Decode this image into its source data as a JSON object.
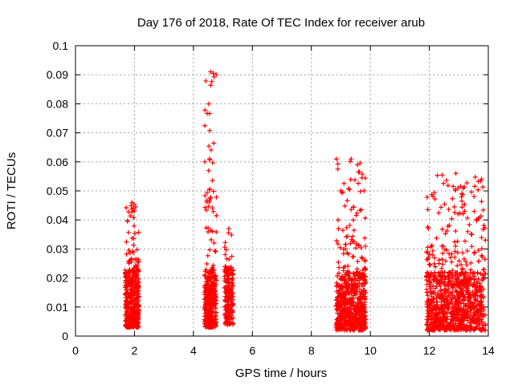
{
  "chart_data": {
    "type": "scatter",
    "title": "Day 176 of 2018, Rate Of TEC Index for receiver arub",
    "xlabel": "GPS time / hours",
    "ylabel": "ROTI / TECUs",
    "xlim": [
      0,
      14
    ],
    "ylim": [
      0,
      0.1
    ],
    "xticks": [
      "0",
      "2",
      "4",
      "6",
      "8",
      "10",
      "12",
      "14"
    ],
    "yticks": [
      "0",
      "0.01",
      "0.02",
      "0.03",
      "0.04",
      "0.05",
      "0.06",
      "0.07",
      "0.08",
      "0.09",
      "0.1"
    ],
    "grid": true,
    "marker": "+",
    "marker_color": "#ff0000",
    "series": [
      {
        "name": "ROTI",
        "clusters": [
          {
            "x_start": 1.68,
            "x_end": 2.15,
            "y_min": 0.003,
            "y_max": 0.046,
            "count": 420
          },
          {
            "x_start": 4.38,
            "x_end": 4.78,
            "y_min": 0.003,
            "y_max": 0.091,
            "count": 380
          },
          {
            "x_start": 5.05,
            "x_end": 5.35,
            "y_min": 0.004,
            "y_max": 0.037,
            "count": 180
          },
          {
            "x_start": 8.85,
            "x_end": 9.85,
            "y_min": 0.002,
            "y_max": 0.061,
            "count": 620
          },
          {
            "x_start": 11.9,
            "x_end": 13.9,
            "y_min": 0.002,
            "y_max": 0.056,
            "count": 950
          }
        ]
      }
    ]
  }
}
